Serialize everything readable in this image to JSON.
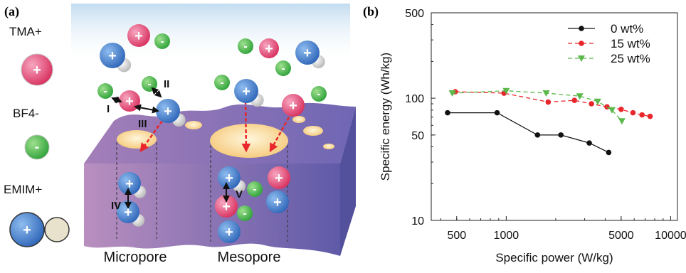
{
  "panel_a": {
    "label": "(a)",
    "ions": [
      {
        "name": "TMA+",
        "charge": "+",
        "color": "#e23a6a"
      },
      {
        "name": "BF4-",
        "charge": "-",
        "color": "#4bb84a"
      },
      {
        "name": "EMIM+",
        "charge": "+",
        "color": "#3a78c8"
      }
    ],
    "interaction_labels": [
      "I",
      "II",
      "III",
      "IV",
      "V"
    ],
    "pore_labels": {
      "micropore": "Micropore",
      "mesopore": "Mesopore"
    },
    "colors": {
      "electrode": "#8a6aa8",
      "electrolyte": "#cfe4f4",
      "pore": "#fbe3b2",
      "arrow": "#e8262b"
    }
  },
  "chart_data": {
    "panel_label": "(b)",
    "type": "line",
    "xscale": "log",
    "yscale": "log",
    "xlabel": "Specific power (W/kg)",
    "ylabel": "Specific energy (Wh/kg)",
    "xlim": [
      350,
      11000
    ],
    "ylim": [
      10,
      500
    ],
    "xticks": [
      500,
      1000,
      5000,
      10000
    ],
    "xtick_labels": [
      "500",
      "1000",
      "5000",
      "10000"
    ],
    "yticks": [
      10,
      50,
      100,
      500
    ],
    "ytick_labels": [
      "10",
      "50",
      "100",
      "500"
    ],
    "grid": false,
    "legend_position": "top-right",
    "series": [
      {
        "name": "0 wt%",
        "color": "#111111",
        "dash": "solid",
        "marker": "circle",
        "x": [
          440,
          880,
          1550,
          2150,
          3200,
          4200
        ],
        "y": [
          76,
          76,
          50,
          50,
          43,
          36
        ]
      },
      {
        "name": "15 wt%",
        "color": "#e8262b",
        "dash": "dashed",
        "marker": "circle",
        "x": [
          490,
          970,
          1800,
          2600,
          3300,
          4100,
          5000,
          5900,
          6700,
          7500
        ],
        "y": [
          113,
          110,
          93,
          96,
          90,
          85,
          81,
          76,
          73,
          71
        ]
      },
      {
        "name": "25 wt%",
        "color": "#5bb84a",
        "dash": "dashed",
        "marker": "triangle-down",
        "x": [
          470,
          1000,
          1750,
          2800,
          3600,
          4400,
          5050
        ],
        "y": [
          110,
          115,
          110,
          104,
          94,
          80,
          65
        ]
      }
    ]
  }
}
